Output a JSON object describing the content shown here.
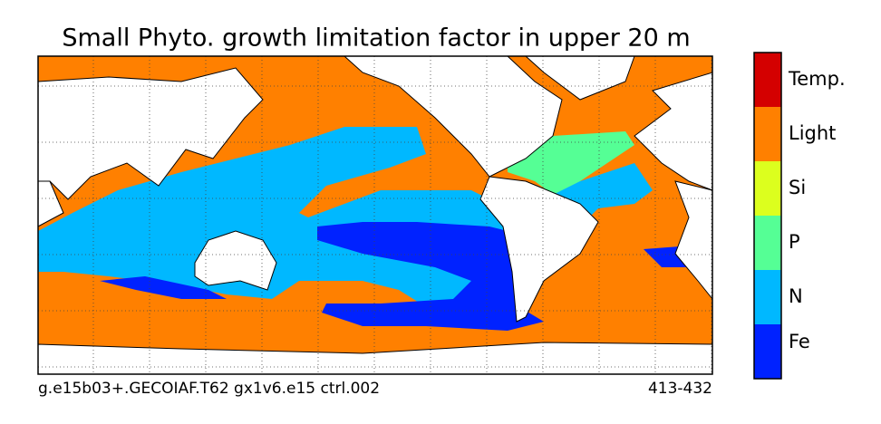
{
  "title": "Small Phyto. growth limitation factor in upper 20 m",
  "footer": {
    "left": "g.e15b03+.GECOIAF.T62 gx1v6.e15 ctrl.002",
    "right": "413-432"
  },
  "legend": {
    "items": [
      {
        "label": "Temp.",
        "color": "#d40000"
      },
      {
        "label": "Light",
        "color": "#ff8000"
      },
      {
        "label": "Si",
        "color": "#dcff1e"
      },
      {
        "label": "P",
        "color": "#55ff95"
      },
      {
        "label": "N",
        "color": "#00b8ff"
      },
      {
        "label": "Fe",
        "color": "#0022ff"
      }
    ]
  }
}
